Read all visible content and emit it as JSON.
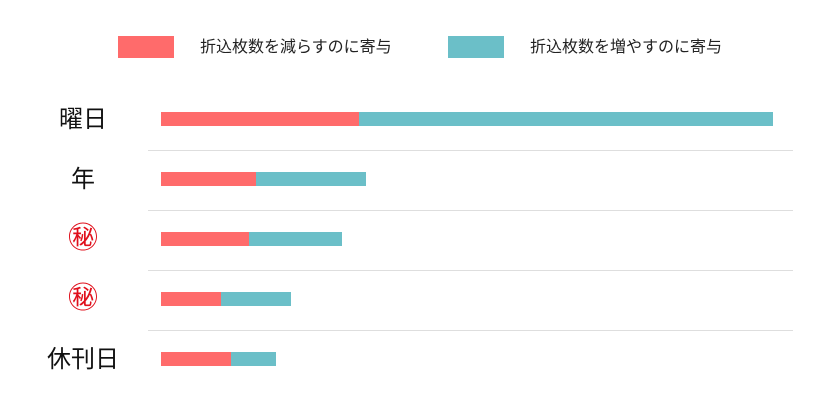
{
  "colors": {
    "decrease": "#ff6b6b",
    "increase": "#6bbfc8"
  },
  "chart_data": {
    "type": "bar",
    "orientation": "horizontal",
    "stacked": true,
    "title": "",
    "xlabel": "",
    "ylabel": "",
    "grid": false,
    "legend_position": "top",
    "categories": [
      "曜日",
      "年",
      "㊙",
      "㊙",
      "休刊日"
    ],
    "series": [
      {
        "name": "折込枚数を減らすのに寄与",
        "values": [
          198,
          95,
          88,
          60,
          70
        ]
      },
      {
        "name": "折込枚数を増やすのに寄与",
        "values": [
          414,
          110,
          93,
          70,
          45
        ]
      }
    ],
    "xlim": [
      0,
      640
    ]
  }
}
